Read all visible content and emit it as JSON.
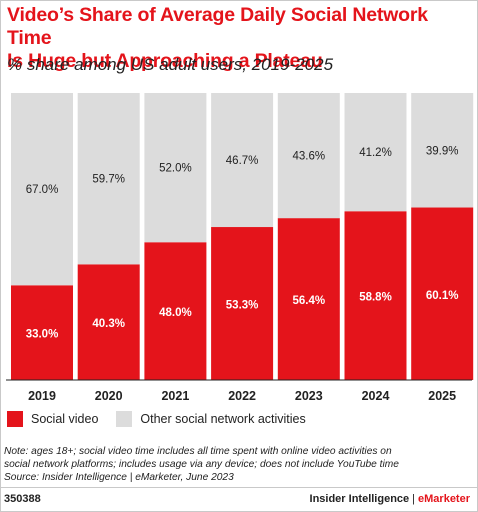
{
  "header": {
    "title_line1": "Video’s Share of Average Daily Social Network Time",
    "title_line2": "Is Huge but Approaching a Plateau",
    "subtitle": "% share among US adult users, 2019-2025"
  },
  "colors": {
    "social_video": "#e4141b",
    "other_activities": "#dcdcdc",
    "title": "#e4141b"
  },
  "chart_data": {
    "type": "bar",
    "stacked": true,
    "orientation": "vertical",
    "categories": [
      "2019",
      "2020",
      "2021",
      "2022",
      "2023",
      "2024",
      "2025"
    ],
    "series": [
      {
        "name": "Social video",
        "values": [
          33.0,
          40.3,
          48.0,
          53.3,
          56.4,
          58.8,
          60.1
        ]
      },
      {
        "name": "Other social network activities",
        "values": [
          67.0,
          59.7,
          52.0,
          46.7,
          43.6,
          41.2,
          39.9
        ]
      }
    ],
    "value_labels": {
      "Social video": [
        "33.0%",
        "40.3%",
        "48.0%",
        "53.3%",
        "56.4%",
        "58.8%",
        "60.1%"
      ],
      "Other social network activities": [
        "67.0%",
        "59.7%",
        "52.0%",
        "46.7%",
        "43.6%",
        "41.2%",
        "39.9%"
      ]
    },
    "ylim": [
      0,
      100
    ],
    "grid": false,
    "legend_position": "bottom-left"
  },
  "legend": {
    "items": [
      {
        "label": "Social video"
      },
      {
        "label": "Other social network activities"
      }
    ]
  },
  "note": {
    "line1": "Note: ages 18+; social video time includes all time spent with online video activities on",
    "line2": "social network platforms; includes usage via any device; does not include YouTube time",
    "line3": "Source: Insider Intelligence | eMarketer, June 2023"
  },
  "footer": {
    "chart_id": "350388",
    "brand_main": "Insider Intelligence",
    "brand_separator": "|",
    "brand_accent": "eMarketer"
  }
}
